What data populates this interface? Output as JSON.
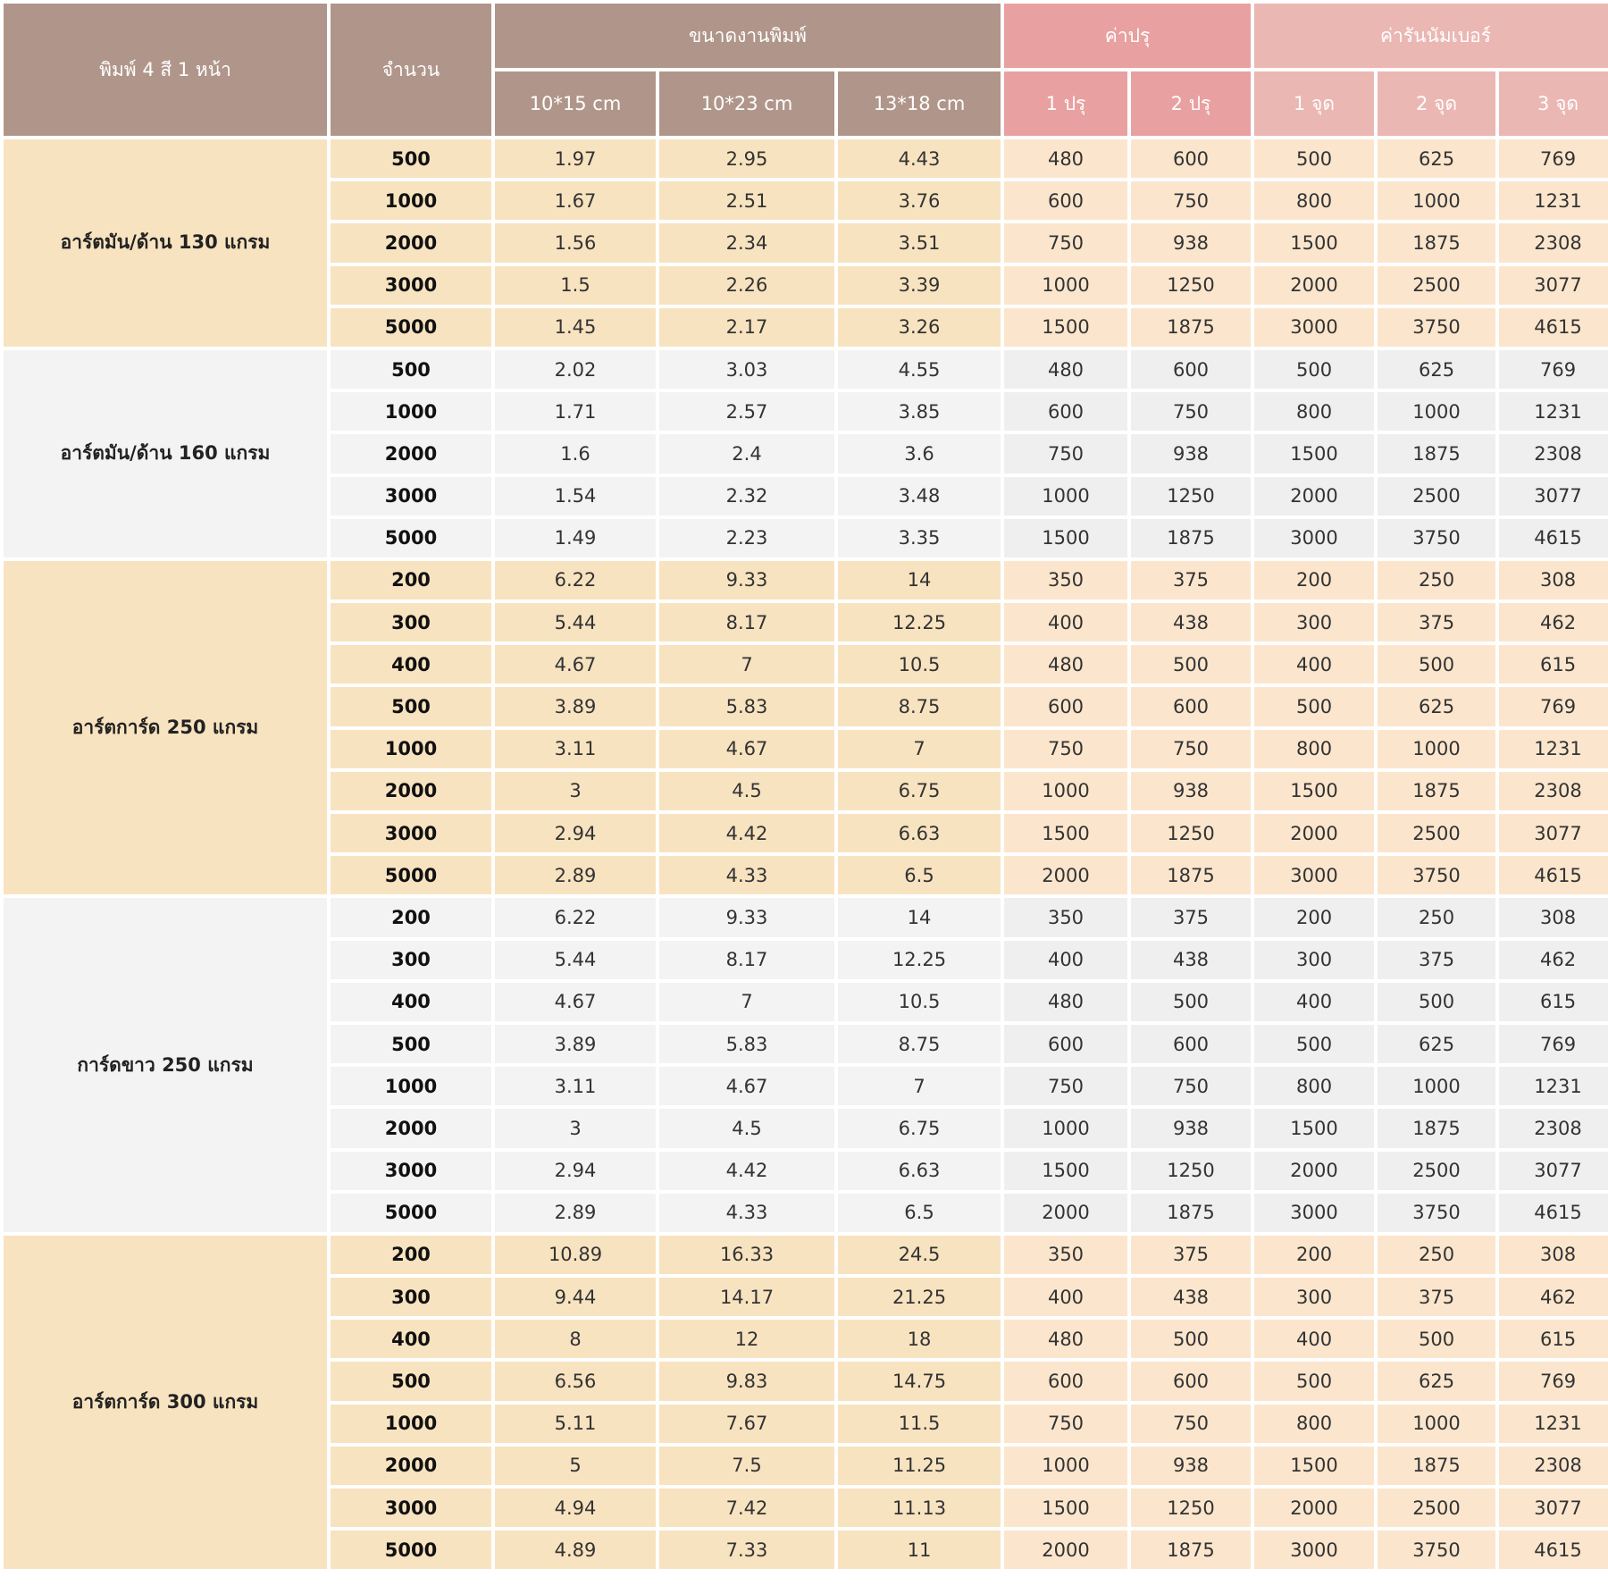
{
  "header": {
    "product": "พิมพ์ 4 สี 1 หน้า",
    "quantity": "จำนวน",
    "print_size": "ขนาดงานพิมพ์",
    "plate_cost": "ค่าปรุ",
    "numbering_cost": "ค่ารันนัมเบอร์",
    "sizes": [
      "10*15 cm",
      "10*23 cm",
      "13*18 cm"
    ],
    "plates": [
      "1 ปรุ",
      "2 ปรุ"
    ],
    "points": [
      "1 จุด",
      "2 จุด",
      "3 จุด"
    ]
  },
  "groups": [
    {
      "material": "อาร์ตมัน/ด้าน 130 แกรม",
      "rows": [
        [
          "500",
          "1.97",
          "2.95",
          "4.43",
          "480",
          "600",
          "500",
          "625",
          "769"
        ],
        [
          "1000",
          "1.67",
          "2.51",
          "3.76",
          "600",
          "750",
          "800",
          "1000",
          "1231"
        ],
        [
          "2000",
          "1.56",
          "2.34",
          "3.51",
          "750",
          "938",
          "1500",
          "1875",
          "2308"
        ],
        [
          "3000",
          "1.5",
          "2.26",
          "3.39",
          "1000",
          "1250",
          "2000",
          "2500",
          "3077"
        ],
        [
          "5000",
          "1.45",
          "2.17",
          "3.26",
          "1500",
          "1875",
          "3000",
          "3750",
          "4615"
        ]
      ]
    },
    {
      "material": "อาร์ตมัน/ด้าน 160 แกรม",
      "rows": [
        [
          "500",
          "2.02",
          "3.03",
          "4.55",
          "480",
          "600",
          "500",
          "625",
          "769"
        ],
        [
          "1000",
          "1.71",
          "2.57",
          "3.85",
          "600",
          "750",
          "800",
          "1000",
          "1231"
        ],
        [
          "2000",
          "1.6",
          "2.4",
          "3.6",
          "750",
          "938",
          "1500",
          "1875",
          "2308"
        ],
        [
          "3000",
          "1.54",
          "2.32",
          "3.48",
          "1000",
          "1250",
          "2000",
          "2500",
          "3077"
        ],
        [
          "5000",
          "1.49",
          "2.23",
          "3.35",
          "1500",
          "1875",
          "3000",
          "3750",
          "4615"
        ]
      ]
    },
    {
      "material": "อาร์ตการ์ด 250 แกรม",
      "rows": [
        [
          "200",
          "6.22",
          "9.33",
          "14",
          "350",
          "375",
          "200",
          "250",
          "308"
        ],
        [
          "300",
          "5.44",
          "8.17",
          "12.25",
          "400",
          "438",
          "300",
          "375",
          "462"
        ],
        [
          "400",
          "4.67",
          "7",
          "10.5",
          "480",
          "500",
          "400",
          "500",
          "615"
        ],
        [
          "500",
          "3.89",
          "5.83",
          "8.75",
          "600",
          "600",
          "500",
          "625",
          "769"
        ],
        [
          "1000",
          "3.11",
          "4.67",
          "7",
          "750",
          "750",
          "800",
          "1000",
          "1231"
        ],
        [
          "2000",
          "3",
          "4.5",
          "6.75",
          "1000",
          "938",
          "1500",
          "1875",
          "2308"
        ],
        [
          "3000",
          "2.94",
          "4.42",
          "6.63",
          "1500",
          "1250",
          "2000",
          "2500",
          "3077"
        ],
        [
          "5000",
          "2.89",
          "4.33",
          "6.5",
          "2000",
          "1875",
          "3000",
          "3750",
          "4615"
        ]
      ]
    },
    {
      "material": "การ์ดขาว 250 แกรม",
      "rows": [
        [
          "200",
          "6.22",
          "9.33",
          "14",
          "350",
          "375",
          "200",
          "250",
          "308"
        ],
        [
          "300",
          "5.44",
          "8.17",
          "12.25",
          "400",
          "438",
          "300",
          "375",
          "462"
        ],
        [
          "400",
          "4.67",
          "7",
          "10.5",
          "480",
          "500",
          "400",
          "500",
          "615"
        ],
        [
          "500",
          "3.89",
          "5.83",
          "8.75",
          "600",
          "600",
          "500",
          "625",
          "769"
        ],
        [
          "1000",
          "3.11",
          "4.67",
          "7",
          "750",
          "750",
          "800",
          "1000",
          "1231"
        ],
        [
          "2000",
          "3",
          "4.5",
          "6.75",
          "1000",
          "938",
          "1500",
          "1875",
          "2308"
        ],
        [
          "3000",
          "2.94",
          "4.42",
          "6.63",
          "1500",
          "1250",
          "2000",
          "2500",
          "3077"
        ],
        [
          "5000",
          "2.89",
          "4.33",
          "6.5",
          "2000",
          "1875",
          "3000",
          "3750",
          "4615"
        ]
      ]
    },
    {
      "material": "อาร์ตการ์ด 300 แกรม",
      "rows": [
        [
          "200",
          "10.89",
          "16.33",
          "24.5",
          "350",
          "375",
          "200",
          "250",
          "308"
        ],
        [
          "300",
          "9.44",
          "14.17",
          "21.25",
          "400",
          "438",
          "300",
          "375",
          "462"
        ],
        [
          "400",
          "8",
          "12",
          "18",
          "480",
          "500",
          "400",
          "500",
          "615"
        ],
        [
          "500",
          "6.56",
          "9.83",
          "14.75",
          "600",
          "600",
          "500",
          "625",
          "769"
        ],
        [
          "1000",
          "5.11",
          "7.67",
          "11.5",
          "750",
          "750",
          "800",
          "1000",
          "1231"
        ],
        [
          "2000",
          "5",
          "7.5",
          "11.25",
          "1000",
          "938",
          "1500",
          "1875",
          "2308"
        ],
        [
          "3000",
          "4.94",
          "7.42",
          "11.13",
          "1500",
          "1250",
          "2000",
          "2500",
          "3077"
        ],
        [
          "5000",
          "4.89",
          "7.33",
          "11",
          "2000",
          "1875",
          "3000",
          "3750",
          "4615"
        ]
      ]
    }
  ]
}
